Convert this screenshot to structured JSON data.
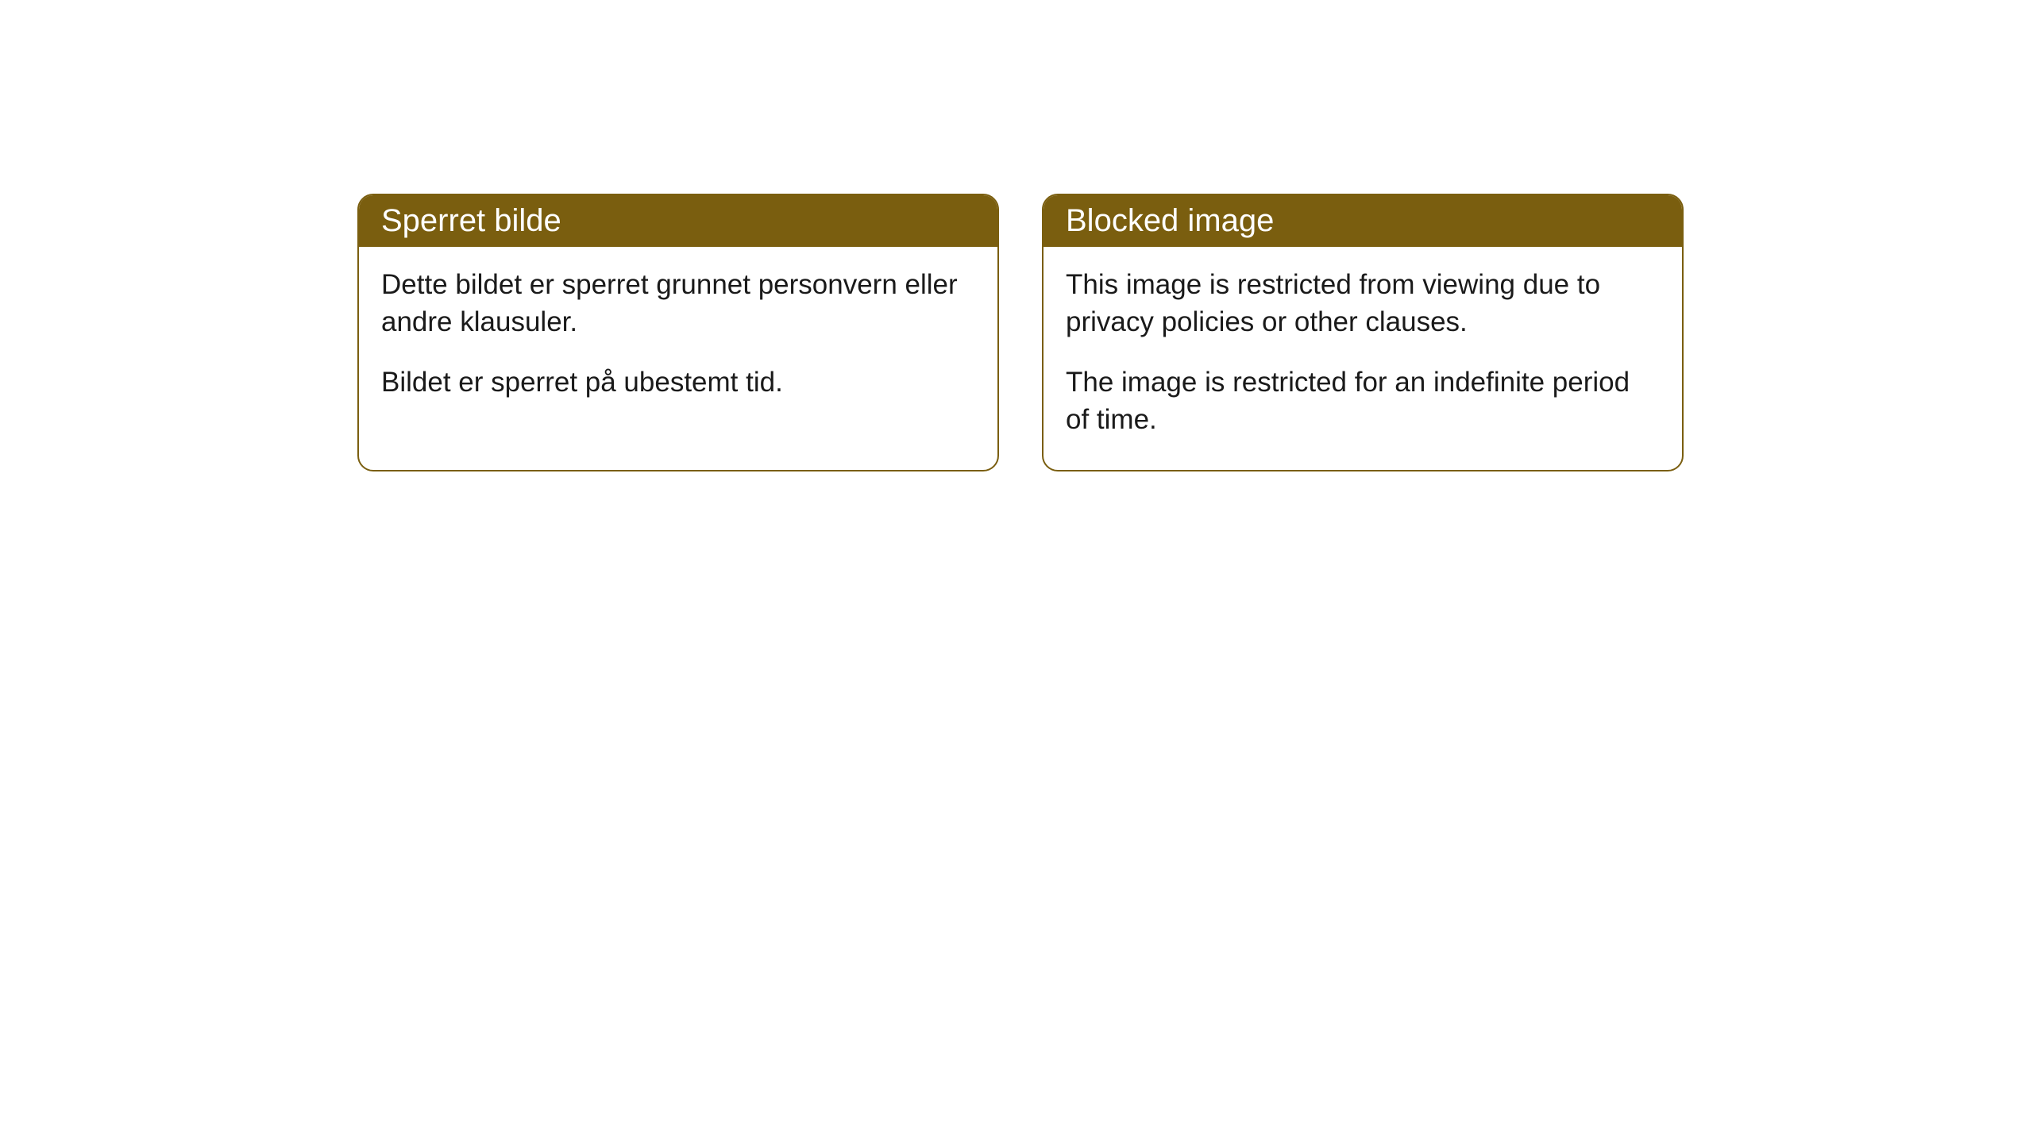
{
  "cards": [
    {
      "title": "Sperret bilde",
      "paragraph1": "Dette bildet er sperret grunnet personvern eller andre klausuler.",
      "paragraph2": "Bildet er sperret på ubestemt tid."
    },
    {
      "title": "Blocked image",
      "paragraph1": "This image is restricted from viewing due to privacy policies or other clauses.",
      "paragraph2": "The image is restricted for an indefinite period of time."
    }
  ],
  "style": {
    "header_bg": "#7a5e0f",
    "header_fg": "#ffffff",
    "border_color": "#7a5e0f",
    "body_bg": "#ffffff",
    "body_fg": "#1a1a1a",
    "border_radius": 20,
    "title_fontsize": 40,
    "body_fontsize": 35
  }
}
